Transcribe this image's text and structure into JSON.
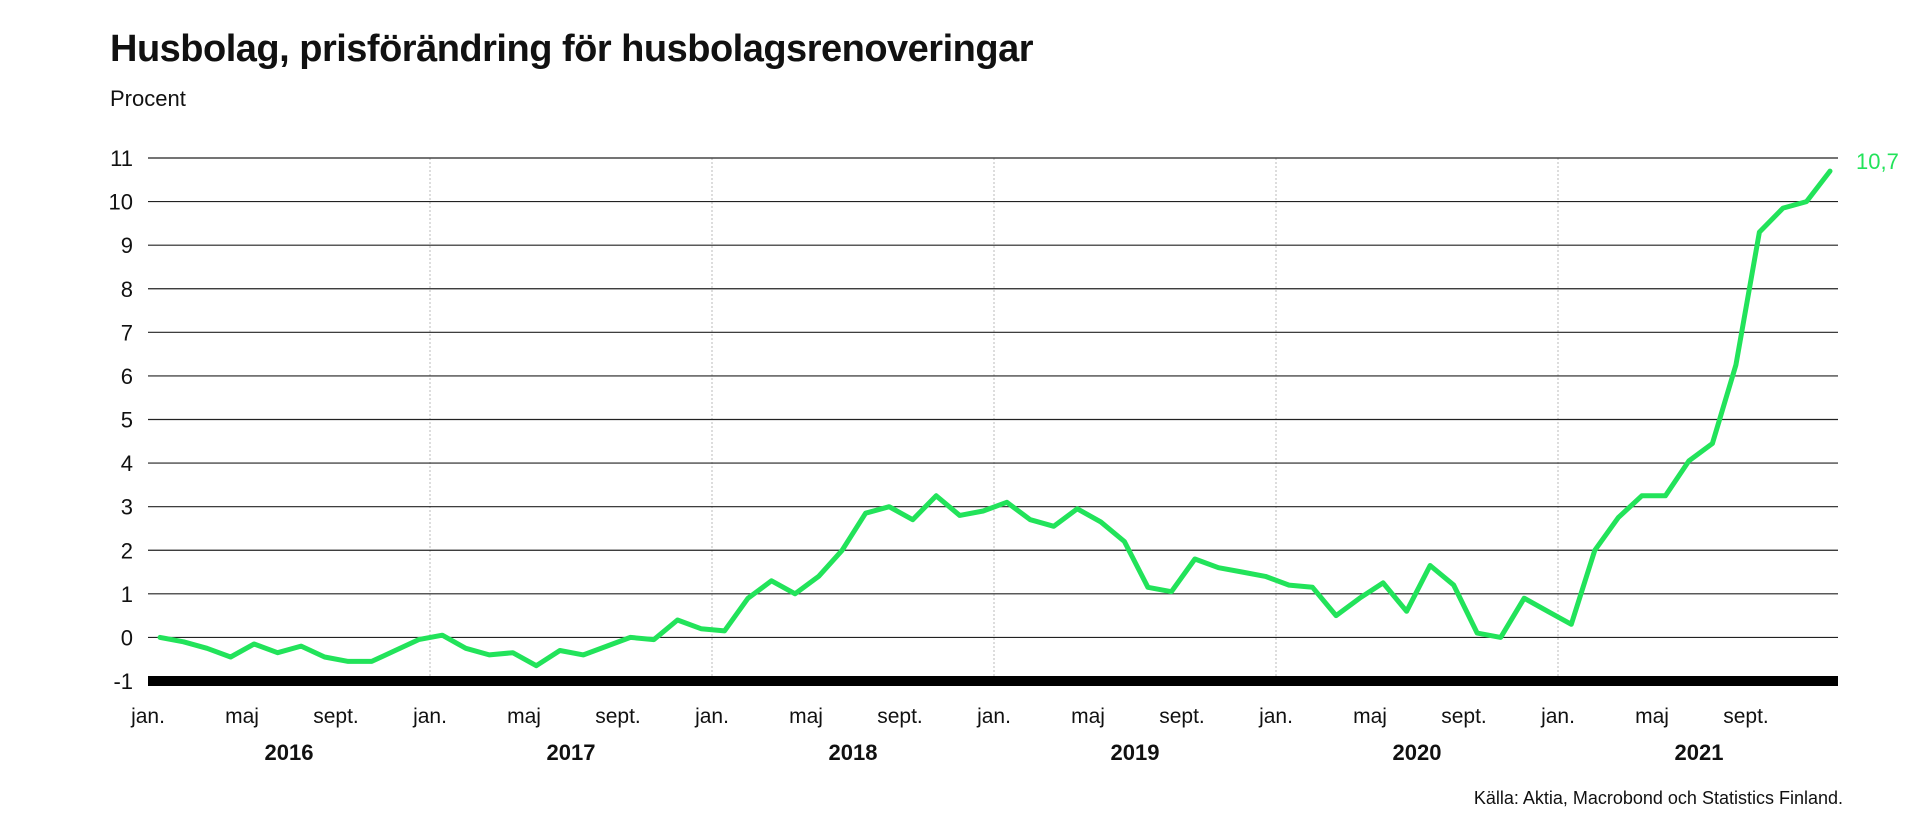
{
  "title": "Husbolag, prisförändring för husbolagsrenoveringar",
  "subtitle": "Procent",
  "source": "Källa: Aktia, Macrobond och Statistics Finland.",
  "chart_data": {
    "type": "line",
    "title": "Husbolag, prisförändring för husbolagsrenoveringar",
    "ylabel": "Procent",
    "ylim": [
      -1,
      11
    ],
    "yticks": [
      11,
      10,
      9,
      8,
      7,
      6,
      5,
      4,
      3,
      2,
      1,
      0,
      -1
    ],
    "grid": true,
    "legend": "none",
    "line_color": "#22e35a",
    "end_label": "10,7",
    "years": [
      "2016",
      "2017",
      "2018",
      "2019",
      "2020",
      "2021"
    ],
    "month_ticks": [
      "jan.",
      "maj",
      "sept."
    ],
    "start": "2016-01",
    "values": [
      0.0,
      -0.1,
      -0.25,
      -0.45,
      -0.15,
      -0.35,
      -0.2,
      -0.45,
      -0.55,
      -0.55,
      -0.3,
      -0.05,
      0.05,
      -0.25,
      -0.4,
      -0.35,
      -0.65,
      -0.3,
      -0.4,
      -0.2,
      0.0,
      -0.05,
      0.4,
      0.2,
      0.15,
      0.9,
      1.3,
      1.0,
      1.4,
      2.0,
      2.85,
      3.0,
      2.7,
      3.25,
      2.8,
      2.9,
      3.1,
      2.7,
      2.55,
      2.95,
      2.65,
      2.2,
      1.15,
      1.05,
      1.8,
      1.6,
      1.5,
      1.4,
      1.2,
      1.15,
      0.5,
      0.9,
      1.25,
      0.6,
      1.65,
      1.2,
      0.1,
      0.0,
      0.9,
      0.6,
      0.3,
      2.0,
      2.75,
      3.25,
      3.25,
      4.05,
      4.45,
      6.25,
      9.3,
      9.85,
      10.0,
      10.7
    ]
  }
}
